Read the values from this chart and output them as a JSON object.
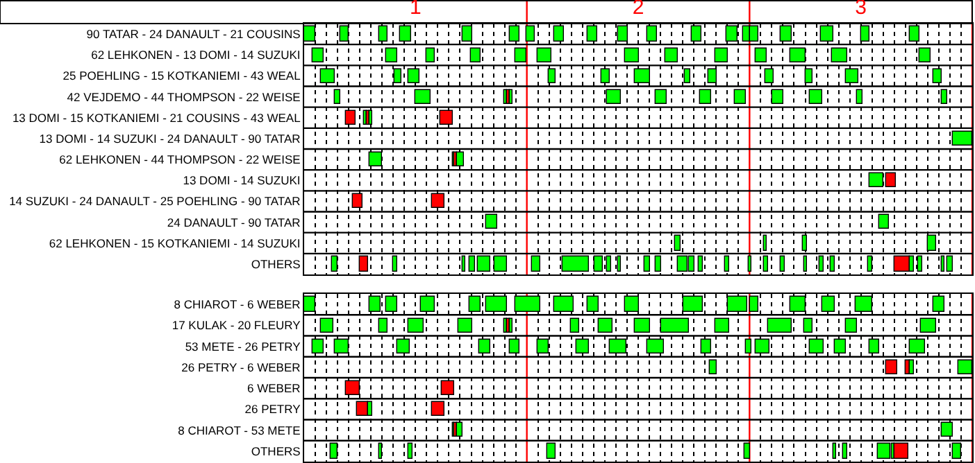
{
  "chart_data": [
    {
      "type": "bar",
      "orientation": "horizontal",
      "grid": true,
      "categories": [
        "90 TATAR - 24 DANAULT - 21 COUSINS",
        "62 LEHKONEN - 13 DOMI - 14 SUZUKI",
        "25 POEHLING - 15 KOTKANIEMI - 43 WEAL",
        "42 VEJDEMO - 44 THOMPSON - 22 WEISE",
        "13 DOMI - 15 KOTKANIEMI - 21 COUSINS - 43 WEAL",
        "13 DOMI - 14 SUZUKI - 24 DANAULT - 90 TATAR",
        "62 LEHKONEN - 44 THOMPSON - 22 WEISE",
        "13 DOMI - 14 SUZUKI",
        "14 SUZUKI - 24 DANAULT - 25 POEHLING - 90 TATAR",
        "24 DANAULT - 90 TATAR",
        "62 LEHKONEN - 15 KOTKANIEMI - 14 SUZUKI",
        "OTHERS"
      ],
      "xlim": [
        0.5,
        3.5
      ],
      "xticks": [
        {
          "value": 0.55,
          "label": null
        },
        {
          "value": 0.6,
          "label": null
        },
        {
          "value": 0.65,
          "label": null
        },
        {
          "value": 0.7,
          "label": null
        },
        {
          "value": 0.75,
          "label": null
        },
        {
          "value": 0.8,
          "label": null
        },
        {
          "value": 0.85,
          "label": null
        },
        {
          "value": 0.9,
          "label": null
        },
        {
          "value": 0.95,
          "label": null
        },
        1,
        {
          "value": 1.05,
          "label": null
        },
        {
          "value": 1.1,
          "label": null
        },
        {
          "value": 1.15,
          "label": null
        },
        {
          "value": 1.2,
          "label": null
        },
        {
          "value": 1.25,
          "label": null
        },
        {
          "value": 1.3,
          "label": null
        },
        {
          "value": 1.35,
          "label": null
        },
        {
          "value": 1.4,
          "label": null
        },
        {
          "value": 1.45,
          "label": null
        },
        {
          "value": 1.55,
          "label": null
        },
        {
          "value": 1.6,
          "label": null
        },
        {
          "value": 1.65,
          "label": null
        },
        {
          "value": 1.7,
          "label": null
        },
        {
          "value": 1.75,
          "label": null
        },
        {
          "value": 1.8,
          "label": null
        },
        {
          "value": 1.85,
          "label": null
        },
        {
          "value": 1.9,
          "label": null
        },
        {
          "value": 1.95,
          "label": null
        },
        2,
        {
          "value": 2.05,
          "label": null
        },
        {
          "value": 2.1,
          "label": null
        },
        {
          "value": 2.15,
          "label": null
        },
        {
          "value": 2.2,
          "label": null
        },
        {
          "value": 2.25,
          "label": null
        },
        {
          "value": 2.3,
          "label": null
        },
        {
          "value": 2.35,
          "label": null
        },
        {
          "value": 2.4,
          "label": null
        },
        {
          "value": 2.45,
          "label": null
        },
        {
          "value": 2.55,
          "label": null
        },
        {
          "value": 2.6,
          "label": null
        },
        {
          "value": 2.65,
          "label": null
        },
        {
          "value": 2.7,
          "label": null
        },
        {
          "value": 2.75,
          "label": null
        },
        {
          "value": 2.8,
          "label": null
        },
        {
          "value": 2.85,
          "label": null
        },
        {
          "value": 2.9,
          "label": null
        },
        {
          "value": 2.95,
          "label": null
        },
        3,
        {
          "value": 3.05,
          "label": null
        },
        {
          "value": 3.1,
          "label": null
        },
        {
          "value": 3.15,
          "label": null
        },
        {
          "value": 3.2,
          "label": null
        },
        {
          "value": 3.25,
          "label": null
        },
        {
          "value": 3.3,
          "label": null
        },
        {
          "value": 3.35,
          "label": null
        },
        {
          "value": 3.4,
          "label": null
        },
        {
          "value": 3.45,
          "label": null
        }
      ],
      "ref_lines": [
        {
          "axis": "x",
          "value": 1.5,
          "color": "#ff0000"
        },
        {
          "axis": "x",
          "value": 2.5,
          "color": "#ff0000"
        },
        {
          "axis": "x",
          "value": 3.5,
          "color": "#ff0000"
        }
      ],
      "series": [
        {
          "base": [
            0.5,
            0.535,
            0.575,
            0.64,
            0.685,
            3.41,
            0.79,
            3.04,
            0.72,
            1.32,
            2.165,
            0.625
          ],
          "values": [
            0.05,
            0.055,
            0.06,
            0.025,
            0.045,
            0.09,
            0.06,
            0.06,
            0.04,
            0.045,
            0.025,
            0.025
          ],
          "colors": [
            "#00ff00",
            "#00ff00",
            "#00ff00",
            "#00ff00",
            "#ff0000",
            "#00ff00",
            "#00ff00",
            "#00ff00",
            "#ff0000",
            "#00ff00",
            "#00ff00",
            "#00ff00"
          ]
        },
        {
          "base": [
            0.66,
            0.87,
            0.905,
            1.0,
            0.77,
            null,
            1.165,
            3.115,
            1.075,
            3.085,
            2.565,
            0.75
          ],
          "values": [
            0.04,
            0.045,
            0.03,
            0.065,
            0.01,
            null,
            0.01,
            0.04,
            0.055,
            0.04,
            0.015,
            0.035
          ],
          "colors": [
            "#00ff00",
            "#00ff00",
            "#00ff00",
            "#00ff00",
            "#00ff00",
            null,
            "#00ff00",
            "#ff0000",
            "#ff0000",
            "#00ff00",
            "#00ff00",
            "#ff0000"
          ]
        },
        {
          "base": [
            0.835,
            1.05,
            0.97,
            1.4,
            0.78,
            null,
            1.175,
            null,
            null,
            null,
            2.74,
            0.9
          ],
          "values": [
            0.04,
            0.035,
            0.045,
            0.01,
            0.01,
            null,
            0.01,
            null,
            null,
            null,
            0.015,
            0.015
          ],
          "colors": [
            "#00ff00",
            "#00ff00",
            "#00ff00",
            "#00ff00",
            "#ff0000",
            null,
            "#ff0000",
            null,
            null,
            null,
            "#00ff00",
            "#00ff00"
          ]
        },
        {
          "base": [
            0.93,
            1.25,
            1.595,
            1.41,
            0.79,
            null,
            1.185,
            null,
            null,
            null,
            3.3,
            1.21
          ],
          "values": [
            0.05,
            0.04,
            0.035,
            0.015,
            0.015,
            null,
            0.03,
            null,
            null,
            null,
            0.035,
            0.015
          ],
          "colors": [
            "#00ff00",
            "#00ff00",
            "#00ff00",
            "#ff0000",
            "#00ff00",
            null,
            "#00ff00",
            null,
            null,
            null,
            "#00ff00",
            "#00ff00"
          ]
        },
        {
          "base": [
            1.21,
            1.45,
            1.835,
            1.425,
            1.11,
            null,
            null,
            null,
            null,
            null,
            null,
            1.245
          ],
          "values": [
            0.045,
            0.05,
            0.035,
            0.01,
            0.06,
            null,
            null,
            null,
            null,
            null,
            null,
            0.02
          ],
          "colors": [
            "#00ff00",
            "#00ff00",
            "#00ff00",
            "#00ff00",
            "#ff0000",
            null,
            null,
            null,
            null,
            null,
            null,
            "#00ff00"
          ]
        },
        {
          "color": "#00ff00",
          "base": [
            1.42,
            1.545,
            1.985,
            1.86,
            null,
            null,
            null,
            null,
            null,
            null,
            null,
            1.28
          ],
          "values": [
            0.045,
            0.065,
            0.065,
            0.06,
            null,
            null,
            null,
            null,
            null,
            null,
            null,
            0.055
          ]
        },
        {
          "color": "#00ff00",
          "base": [
            1.5,
            1.94,
            2.21,
            2.08,
            null,
            null,
            null,
            null,
            null,
            null,
            null,
            1.355
          ],
          "values": [
            0.035,
            0.06,
            0.025,
            0.05,
            null,
            null,
            null,
            null,
            null,
            null,
            null,
            0.055
          ]
        },
        {
          "color": "#00ff00",
          "base": [
            1.62,
            2.12,
            2.315,
            2.28,
            null,
            null,
            null,
            null,
            null,
            null,
            null,
            1.525
          ],
          "values": [
            0.045,
            0.055,
            0.04,
            0.05,
            null,
            null,
            null,
            null,
            null,
            null,
            null,
            0.035
          ]
        },
        {
          "color": "#00ff00",
          "base": [
            1.77,
            2.345,
            2.57,
            2.435,
            null,
            null,
            null,
            null,
            null,
            null,
            null,
            1.66
          ],
          "values": [
            0.045,
            0.06,
            0.04,
            0.05,
            null,
            null,
            null,
            null,
            null,
            null,
            null,
            0.12
          ]
        },
        {
          "color": "#00ff00",
          "base": [
            1.91,
            2.525,
            2.75,
            2.6,
            null,
            null,
            null,
            null,
            null,
            null,
            null,
            1.805
          ],
          "values": [
            0.045,
            0.05,
            0.03,
            0.05,
            null,
            null,
            null,
            null,
            null,
            null,
            null,
            0.035
          ]
        },
        {
          "color": "#00ff00",
          "base": [
            2.04,
            2.685,
            2.935,
            2.77,
            null,
            null,
            null,
            null,
            null,
            null,
            null,
            1.86
          ],
          "values": [
            0.045,
            0.065,
            0.055,
            0.055,
            null,
            null,
            null,
            null,
            null,
            null,
            null,
            0.02
          ]
        },
        {
          "color": "#00ff00",
          "base": [
            2.24,
            2.87,
            3.325,
            2.985,
            null,
            null,
            null,
            null,
            null,
            null,
            null,
            1.91
          ],
          "values": [
            0.045,
            0.07,
            0.04,
            0.025,
            null,
            null,
            null,
            null,
            null,
            null,
            null,
            0.015
          ]
        },
        {
          "color": "#00ff00",
          "base": [
            2.395,
            3.265,
            null,
            3.365,
            null,
            null,
            null,
            null,
            null,
            null,
            null,
            2.03
          ],
          "values": [
            0.05,
            0.045,
            null,
            0.025,
            null,
            null,
            null,
            null,
            null,
            null,
            null,
            0.02
          ]
        },
        {
          "color": "#00ff00",
          "base": [
            2.47,
            null,
            null,
            null,
            null,
            null,
            null,
            null,
            null,
            null,
            null,
            2.075
          ],
          "values": [
            0.03,
            null,
            null,
            null,
            null,
            null,
            null,
            null,
            null,
            null,
            null,
            0.025
          ]
        },
        {
          "color": "#00ff00",
          "base": [
            2.5,
            null,
            null,
            null,
            null,
            null,
            null,
            null,
            null,
            null,
            null,
            2.175
          ],
          "values": [
            0.04,
            null,
            null,
            null,
            null,
            null,
            null,
            null,
            null,
            null,
            null,
            0.045
          ]
        },
        {
          "color": "#00ff00",
          "base": [
            2.64,
            null,
            null,
            null,
            null,
            null,
            null,
            null,
            null,
            null,
            null,
            2.225
          ],
          "values": [
            0.05,
            null,
            null,
            null,
            null,
            null,
            null,
            null,
            null,
            null,
            null,
            0.025
          ]
        },
        {
          "color": "#00ff00",
          "base": [
            2.82,
            null,
            null,
            null,
            null,
            null,
            null,
            null,
            null,
            null,
            null,
            2.27
          ],
          "values": [
            0.055,
            null,
            null,
            null,
            null,
            null,
            null,
            null,
            null,
            null,
            null,
            0.02
          ]
        },
        {
          "color": "#00ff00",
          "base": [
            3.0,
            null,
            null,
            null,
            null,
            null,
            null,
            null,
            null,
            null,
            null,
            2.39
          ],
          "values": [
            0.04,
            null,
            null,
            null,
            null,
            null,
            null,
            null,
            null,
            null,
            null,
            0.02
          ]
        },
        {
          "color": "#00ff00",
          "base": [
            3.22,
            null,
            null,
            null,
            null,
            null,
            null,
            null,
            null,
            null,
            null,
            2.495
          ],
          "values": [
            0.045,
            null,
            null,
            null,
            null,
            null,
            null,
            null,
            null,
            null,
            null,
            0.015
          ]
        },
        {
          "color": "#00ff00",
          "base": [
            null,
            null,
            null,
            null,
            null,
            null,
            null,
            null,
            null,
            null,
            null,
            2.565
          ],
          "values": [
            null,
            null,
            null,
            null,
            null,
            null,
            null,
            null,
            null,
            null,
            null,
            0.02
          ]
        },
        {
          "color": "#00ff00",
          "base": [
            null,
            null,
            null,
            null,
            null,
            null,
            null,
            null,
            null,
            null,
            null,
            2.64
          ],
          "values": [
            null,
            null,
            null,
            null,
            null,
            null,
            null,
            null,
            null,
            null,
            null,
            0.015
          ]
        },
        {
          "color": "#00ff00",
          "base": [
            null,
            null,
            null,
            null,
            null,
            null,
            null,
            null,
            null,
            null,
            null,
            2.745
          ],
          "values": [
            null,
            null,
            null,
            null,
            null,
            null,
            null,
            null,
            null,
            null,
            null,
            0.015
          ]
        },
        {
          "color": "#00ff00",
          "base": [
            null,
            null,
            null,
            null,
            null,
            null,
            null,
            null,
            null,
            null,
            null,
            2.815
          ],
          "values": [
            null,
            null,
            null,
            null,
            null,
            null,
            null,
            null,
            null,
            null,
            null,
            0.015
          ]
        },
        {
          "color": "#00ff00",
          "base": [
            null,
            null,
            null,
            null,
            null,
            null,
            null,
            null,
            null,
            null,
            null,
            2.865
          ],
          "values": [
            null,
            null,
            null,
            null,
            null,
            null,
            null,
            null,
            null,
            null,
            null,
            0.015
          ]
        },
        {
          "color": "#00ff00",
          "base": [
            null,
            null,
            null,
            null,
            null,
            null,
            null,
            null,
            null,
            null,
            null,
            3.035
          ],
          "values": [
            null,
            null,
            null,
            null,
            null,
            null,
            null,
            null,
            null,
            null,
            null,
            0.015
          ]
        },
        {
          "color": "#ff0000",
          "base": [
            null,
            null,
            null,
            null,
            null,
            null,
            null,
            null,
            null,
            null,
            null,
            3.15
          ],
          "values": [
            null,
            null,
            null,
            null,
            null,
            null,
            null,
            null,
            null,
            null,
            null,
            0.07
          ]
        },
        {
          "color": "#00ff00",
          "base": [
            null,
            null,
            null,
            null,
            null,
            null,
            null,
            null,
            null,
            null,
            null,
            3.22
          ],
          "values": [
            null,
            null,
            null,
            null,
            null,
            null,
            null,
            null,
            null,
            null,
            null,
            0.015
          ]
        },
        {
          "color": "#00ff00",
          "base": [
            null,
            null,
            null,
            null,
            null,
            null,
            null,
            null,
            null,
            null,
            null,
            3.255
          ],
          "values": [
            null,
            null,
            null,
            null,
            null,
            null,
            null,
            null,
            null,
            null,
            null,
            0.02
          ]
        },
        {
          "color": "#00ff00",
          "base": [
            null,
            null,
            null,
            null,
            null,
            null,
            null,
            null,
            null,
            null,
            null,
            3.36
          ],
          "values": [
            null,
            null,
            null,
            null,
            null,
            null,
            null,
            null,
            null,
            null,
            null,
            0.015
          ]
        },
        {
          "color": "#00ff00",
          "base": [
            null,
            null,
            null,
            null,
            null,
            null,
            null,
            null,
            null,
            null,
            null,
            3.385
          ],
          "values": [
            null,
            null,
            null,
            null,
            null,
            null,
            null,
            null,
            null,
            null,
            null,
            0.03
          ]
        }
      ]
    },
    {
      "type": "bar",
      "orientation": "horizontal",
      "grid": true,
      "tick_labels": "y",
      "categories": [
        "8 CHIAROT - 6 WEBER",
        "17 KULAK - 20 FLEURY",
        "53 METE - 26 PETRY",
        "26 PETRY - 6 WEBER",
        "6 WEBER",
        "26 PETRY",
        "8 CHIAROT - 53 METE",
        "OTHERS"
      ],
      "xlim": [
        0.5,
        3.5
      ],
      "xticks": [
        {
          "value": 0.55,
          "label": null
        },
        {
          "value": 0.6,
          "label": null
        },
        {
          "value": 0.65,
          "label": null
        },
        {
          "value": 0.7,
          "label": null
        },
        {
          "value": 0.75,
          "label": null
        },
        {
          "value": 0.8,
          "label": null
        },
        {
          "value": 0.85,
          "label": null
        },
        {
          "value": 0.9,
          "label": null
        },
        {
          "value": 0.95,
          "label": null
        },
        1,
        {
          "value": 1.05,
          "label": null
        },
        {
          "value": 1.1,
          "label": null
        },
        {
          "value": 1.15,
          "label": null
        },
        {
          "value": 1.2,
          "label": null
        },
        {
          "value": 1.25,
          "label": null
        },
        {
          "value": 1.3,
          "label": null
        },
        {
          "value": 1.35,
          "label": null
        },
        {
          "value": 1.4,
          "label": null
        },
        {
          "value": 1.45,
          "label": null
        },
        {
          "value": 1.55,
          "label": null
        },
        {
          "value": 1.6,
          "label": null
        },
        {
          "value": 1.65,
          "label": null
        },
        {
          "value": 1.7,
          "label": null
        },
        {
          "value": 1.75,
          "label": null
        },
        {
          "value": 1.8,
          "label": null
        },
        {
          "value": 1.85,
          "label": null
        },
        {
          "value": 1.9,
          "label": null
        },
        {
          "value": 1.95,
          "label": null
        },
        2,
        {
          "value": 2.05,
          "label": null
        },
        {
          "value": 2.1,
          "label": null
        },
        {
          "value": 2.15,
          "label": null
        },
        {
          "value": 2.2,
          "label": null
        },
        {
          "value": 2.25,
          "label": null
        },
        {
          "value": 2.3,
          "label": null
        },
        {
          "value": 2.35,
          "label": null
        },
        {
          "value": 2.4,
          "label": null
        },
        {
          "value": 2.45,
          "label": null
        },
        {
          "value": 2.55,
          "label": null
        },
        {
          "value": 2.6,
          "label": null
        },
        {
          "value": 2.65,
          "label": null
        },
        {
          "value": 2.7,
          "label": null
        },
        {
          "value": 2.75,
          "label": null
        },
        {
          "value": 2.8,
          "label": null
        },
        {
          "value": 2.85,
          "label": null
        },
        {
          "value": 2.9,
          "label": null
        },
        {
          "value": 2.95,
          "label": null
        },
        3,
        {
          "value": 3.05,
          "label": null
        },
        {
          "value": 3.1,
          "label": null
        },
        {
          "value": 3.15,
          "label": null
        },
        {
          "value": 3.2,
          "label": null
        },
        {
          "value": 3.25,
          "label": null
        },
        {
          "value": 3.3,
          "label": null
        },
        {
          "value": 3.35,
          "label": null
        },
        {
          "value": 3.4,
          "label": null
        },
        {
          "value": 3.45,
          "label": null
        }
      ],
      "ref_lines": [
        {
          "axis": "x",
          "value": 1.5,
          "color": "#ff0000"
        },
        {
          "axis": "x",
          "value": 2.5,
          "color": "#ff0000"
        },
        {
          "axis": "x",
          "value": 3.5,
          "color": "#ff0000"
        }
      ],
      "series": [
        {
          "base": [
            0.5,
            0.575,
            0.535,
            2.32,
            0.685,
            0.74,
            1.165,
            0.62
          ],
          "values": [
            0.05,
            0.055,
            0.055,
            0.035,
            0.065,
            0.045,
            0.01,
            0.03
          ],
          "colors": [
            "#00ff00",
            "#00ff00",
            "#00ff00",
            "#00ff00",
            "#ff0000",
            "#ff0000",
            "#00ff00",
            "#00ff00"
          ]
        },
        {
          "base": [
            0.79,
            0.835,
            0.64,
            3.115,
            1.115,
            0.785,
            1.175,
            0.835
          ],
          "values": [
            0.05,
            0.04,
            0.06,
            0.05,
            0.06,
            0.02,
            0.01,
            0.015
          ],
          "colors": [
            "#00ff00",
            "#00ff00",
            "#00ff00",
            "#ff0000",
            "#ff0000",
            "#00ff00",
            "#ff0000",
            "#00ff00"
          ]
        },
        {
          "base": [
            0.87,
            0.97,
            0.915,
            3.2,
            null,
            1.075,
            1.185,
            0.965
          ],
          "values": [
            0.05,
            0.065,
            0.06,
            0.02,
            null,
            0.055,
            0.025,
            0.02
          ],
          "colors": [
            "#00ff00",
            "#00ff00",
            "#00ff00",
            "#ff0000",
            null,
            "#ff0000",
            "#00ff00",
            "#00ff00"
          ]
        },
        {
          "color": "#00ff00",
          "base": [
            1.025,
            1.195,
            1.285,
            3.22,
            null,
            null,
            3.365,
            1.59
          ],
          "values": [
            0.06,
            0.06,
            0.05,
            0.015,
            null,
            null,
            0.05,
            0.04
          ]
        },
        {
          "color": "#00ff00",
          "base": [
            1.245,
            1.4,
            1.42,
            3.44,
            null,
            null,
            null,
            2.48
          ],
          "values": [
            0.045,
            0.01,
            0.045,
            0.06,
            null,
            null,
            null,
            0.025
          ]
        },
        {
          "base": [
            1.32,
            1.41,
            1.545,
            null,
            null,
            null,
            null,
            2.875
          ],
          "values": [
            0.09,
            0.015,
            0.055,
            null,
            null,
            null,
            null,
            0.015
          ],
          "colors": [
            "#00ff00",
            "#ff0000",
            "#00ff00",
            null,
            null,
            null,
            null,
            "#00ff00"
          ]
        },
        {
          "color": "#00ff00",
          "base": [
            1.45,
            1.425,
            1.725,
            null,
            null,
            null,
            null,
            2.92
          ],
          "values": [
            0.11,
            0.01,
            0.055,
            null,
            null,
            null,
            null,
            0.02
          ]
        },
        {
          "color": "#00ff00",
          "base": [
            1.62,
            1.7,
            1.875,
            null,
            null,
            null,
            null,
            3.075
          ],
          "values": [
            0.09,
            0.035,
            0.075,
            null,
            null,
            null,
            null,
            0.055
          ]
        },
        {
          "color": "#00ff00",
          "base": [
            1.77,
            1.82,
            2.04,
            null,
            null,
            null,
            null,
            3.14
          ],
          "values": [
            0.055,
            0.065,
            0.075,
            null,
            null,
            null,
            null,
            0.01
          ]
        },
        {
          "base": [
            1.94,
            1.985,
            2.285,
            null,
            null,
            null,
            null,
            3.15
          ],
          "values": [
            0.06,
            0.065,
            0.045,
            null,
            null,
            null,
            null,
            0.06
          ],
          "colors": [
            "#00ff00",
            "#00ff00",
            "#00ff00",
            null,
            null,
            null,
            null,
            "#ff0000"
          ]
        },
        {
          "color": "#00ff00",
          "base": [
            2.205,
            2.1,
            2.485,
            null,
            null,
            null,
            null,
            3.41
          ],
          "values": [
            0.085,
            0.125,
            0.025,
            null,
            null,
            null,
            null,
            0.04
          ]
        },
        {
          "color": "#00ff00",
          "base": [
            2.4,
            2.345,
            2.525,
            null,
            null,
            null,
            null,
            null
          ],
          "values": [
            0.09,
            0.065,
            0.065,
            null,
            null,
            null,
            null,
            null
          ]
        },
        {
          "color": "#00ff00",
          "base": [
            2.5,
            2.585,
            2.77,
            null,
            null,
            null,
            null,
            null
          ],
          "values": [
            0.04,
            0.105,
            0.065,
            null,
            null,
            null,
            null,
            null
          ]
        },
        {
          "color": "#00ff00",
          "base": [
            2.685,
            2.745,
            2.885,
            null,
            null,
            null,
            null,
            null
          ],
          "values": [
            0.065,
            0.035,
            0.05,
            null,
            null,
            null,
            null,
            null
          ]
        },
        {
          "color": "#00ff00",
          "base": [
            2.825,
            2.935,
            3.04,
            null,
            null,
            null,
            null,
            null
          ],
          "values": [
            0.06,
            0.05,
            0.045,
            null,
            null,
            null,
            null,
            null
          ]
        },
        {
          "color": "#00ff00",
          "base": [
            2.975,
            3.27,
            3.22,
            null,
            null,
            null,
            null,
            null
          ],
          "values": [
            0.075,
            0.065,
            0.065,
            null,
            null,
            null,
            null,
            null
          ]
        },
        {
          "color": "#00ff00",
          "base": [
            3.325,
            null,
            null,
            null,
            null,
            null,
            null,
            null
          ],
          "values": [
            0.05,
            null,
            null,
            null,
            null,
            null,
            null,
            null
          ]
        }
      ]
    }
  ]
}
